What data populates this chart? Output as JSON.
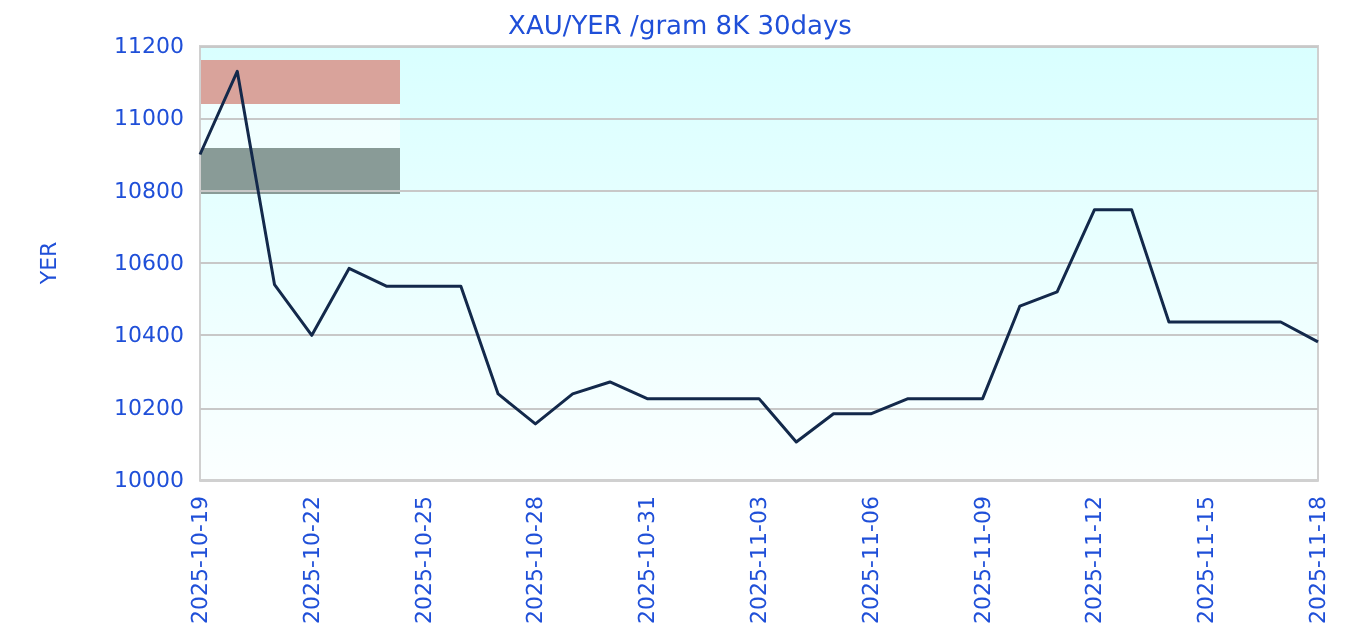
{
  "chart_data": {
    "type": "line",
    "title": "XAU/YER /gram 8K 30days",
    "ylabel": "YER",
    "x": [
      "2025-10-19",
      "2025-10-20",
      "2025-10-21",
      "2025-10-22",
      "2025-10-23",
      "2025-10-24",
      "2025-10-25",
      "2025-10-26",
      "2025-10-27",
      "2025-10-28",
      "2025-10-29",
      "2025-10-30",
      "2025-10-31",
      "2025-11-01",
      "2025-11-02",
      "2025-11-03",
      "2025-11-04",
      "2025-11-05",
      "2025-11-06",
      "2025-11-07",
      "2025-11-08",
      "2025-11-09",
      "2025-11-10",
      "2025-11-11",
      "2025-11-12",
      "2025-11-13",
      "2025-11-14",
      "2025-11-15",
      "2025-11-16",
      "2025-11-17",
      "2025-11-18"
    ],
    "series": [
      {
        "color": "#13294b",
        "values": [
          10900,
          11130,
          10540,
          10400,
          10585,
          10536,
          10536,
          10536,
          10238,
          10155,
          10238,
          10271,
          10225,
          10225,
          10225,
          10225,
          10105,
          10183,
          10183,
          10225,
          10225,
          10225,
          10481,
          10520,
          10747,
          10747,
          10437,
          10437,
          10437,
          10437,
          10382
        ]
      }
    ],
    "xlim": [
      "2025-10-19",
      "2025-11-18"
    ],
    "xticks": [
      "2025-10-19",
      "2025-10-22",
      "2025-10-25",
      "2025-10-28",
      "2025-10-31",
      "2025-11-03",
      "2025-11-06",
      "2025-11-09",
      "2025-11-12",
      "2025-11-15",
      "2025-11-18"
    ],
    "ylim": [
      10000,
      11200
    ],
    "yticks": [
      10000,
      10200,
      10400,
      10600,
      10800,
      11000,
      11200
    ],
    "grid": "y",
    "marker": "none",
    "line_style": "solid"
  }
}
